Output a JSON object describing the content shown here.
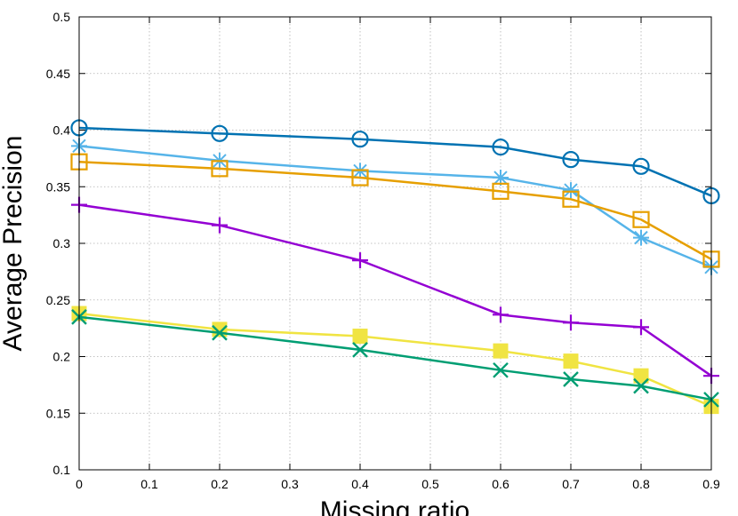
{
  "chart_data": {
    "type": "line",
    "title": "",
    "xlabel": "Missing ratio",
    "ylabel": "Average Precision",
    "xlim": [
      0,
      0.9
    ],
    "ylim": [
      0.1,
      0.5
    ],
    "grid": true,
    "x_ticks": [
      "0",
      "0.1",
      "0.2",
      "0.3",
      "0.4",
      "0.5",
      "0.6",
      "0.7",
      "0.8",
      "0.9"
    ],
    "y_ticks": [
      "0.1",
      "0.15",
      "0.2",
      "0.25",
      "0.3",
      "0.35",
      "0.4",
      "0.45",
      "0.5"
    ],
    "x": [
      0,
      0.2,
      0.4,
      0.6,
      0.7,
      0.8,
      0.9
    ],
    "series": [
      {
        "color": "#0072b2",
        "marker": "circle",
        "values": [
          0.402,
          0.397,
          0.392,
          0.385,
          0.374,
          0.368,
          0.342
        ]
      },
      {
        "color": "#56b4e9",
        "marker": "asterisk",
        "values": [
          0.386,
          0.373,
          0.364,
          0.358,
          0.347,
          0.305,
          0.279
        ]
      },
      {
        "color": "#e69f00",
        "marker": "square",
        "values": [
          0.372,
          0.366,
          0.358,
          0.346,
          0.339,
          0.321,
          0.286
        ]
      },
      {
        "color": "#9400d3",
        "marker": "plus",
        "values": [
          0.334,
          0.316,
          0.285,
          0.237,
          0.23,
          0.226,
          0.183
        ]
      },
      {
        "color": "#f0e442",
        "marker": "filled-square",
        "values": [
          0.238,
          0.224,
          0.218,
          0.205,
          0.196,
          0.183,
          0.156
        ]
      },
      {
        "color": "#009e73",
        "marker": "cross",
        "values": [
          0.235,
          0.221,
          0.206,
          0.188,
          0.18,
          0.174,
          0.162
        ]
      }
    ]
  }
}
